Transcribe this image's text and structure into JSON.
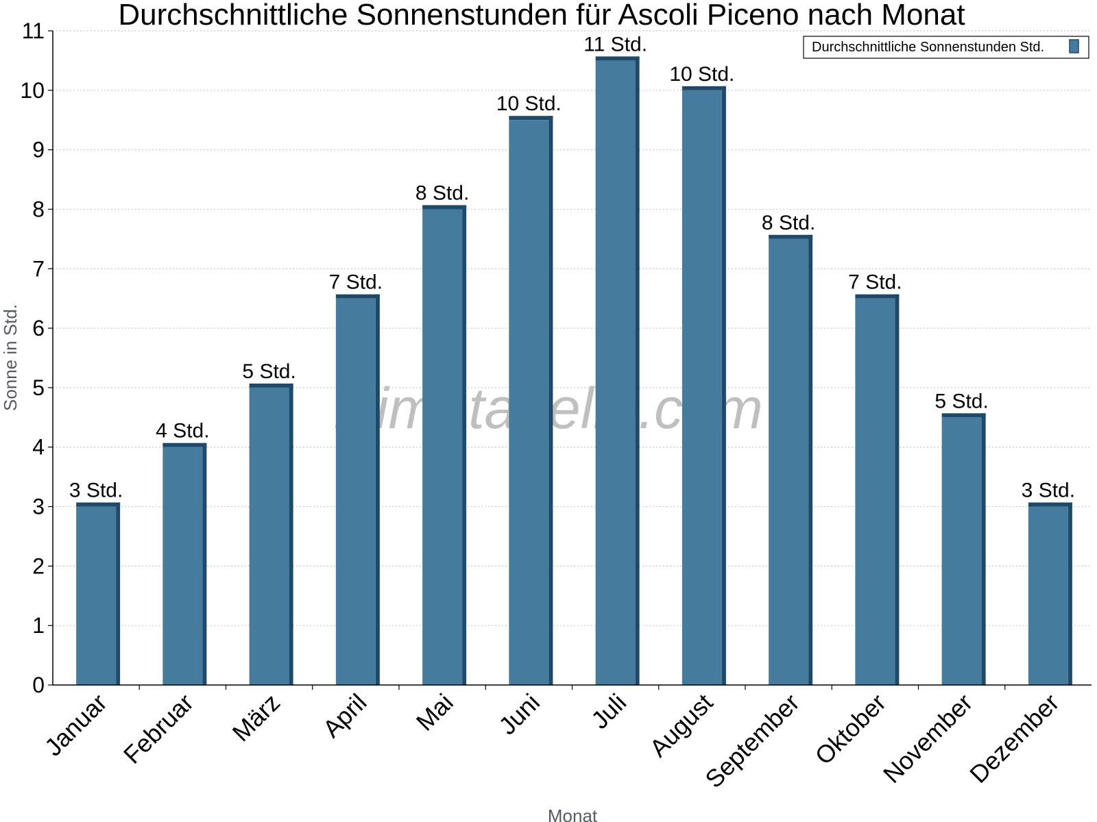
{
  "chart_data": {
    "type": "bar",
    "title": "Durchschnittliche Sonnenstunden für Ascoli Piceno nach Monat",
    "xlabel": "Monat",
    "ylabel": "Sonne in Std.",
    "categories": [
      "Januar",
      "Februar",
      "März",
      "April",
      "Mai",
      "Juni",
      "Juli",
      "August",
      "September",
      "Oktober",
      "November",
      "Dezember"
    ],
    "series": [
      {
        "name": "Durchschnittliche Sonnenstunden Std.",
        "values": [
          3,
          4,
          5,
          6.5,
          8,
          9.5,
          10.5,
          10,
          7.5,
          6.5,
          4.5,
          3
        ],
        "labels": [
          "3 Std.",
          "4 Std.",
          "5 Std.",
          "7 Std.",
          "8 Std.",
          "10 Std.",
          "11 Std.",
          "10 Std.",
          "8 Std.",
          "7 Std.",
          "5 Std.",
          "3 Std."
        ]
      }
    ],
    "ylim": [
      0,
      11
    ],
    "yticks": [
      "0",
      "1",
      "2",
      "3",
      "4",
      "5",
      "6",
      "7",
      "8",
      "9",
      "10",
      "11"
    ],
    "grid": true,
    "legend_position": "top-right",
    "colors": {
      "bar": "#457b9d",
      "bar_side": "#1d4a6b",
      "grid": "#c8c8c8"
    }
  },
  "watermark": "klimatabelle.com"
}
